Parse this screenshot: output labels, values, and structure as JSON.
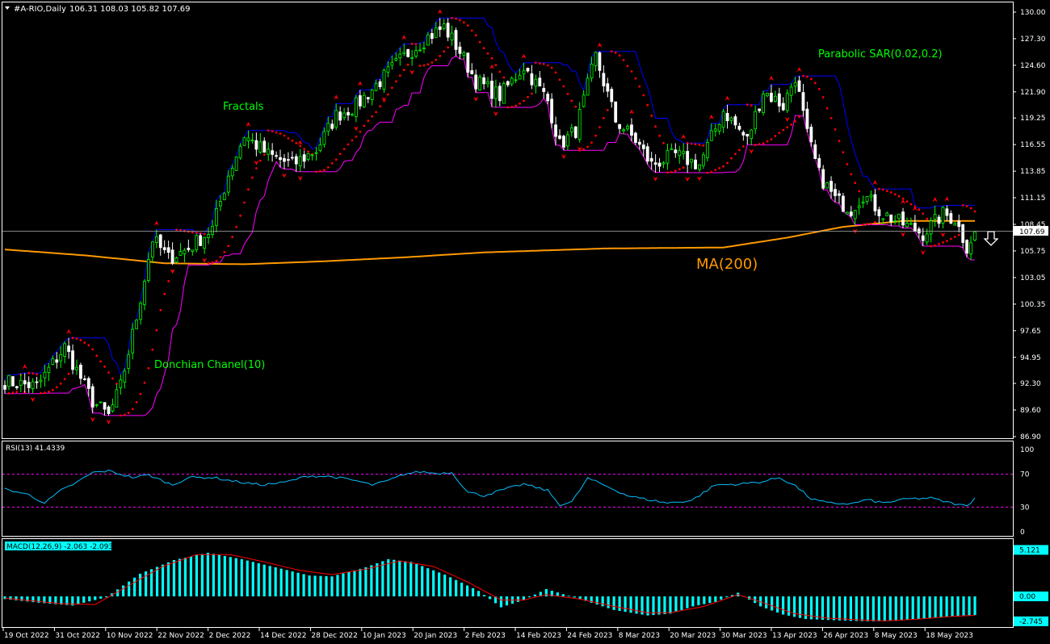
{
  "header": {
    "symbol_line": "#A-RIO,Daily",
    "ohlc": "106.31 108.03 105.82 107.69"
  },
  "colors": {
    "background": "#000000",
    "frame": "#ffffff",
    "bull_candle": "#00ff00",
    "bear_candle": "#ffffff",
    "donchian": "#0000ff",
    "donchian_low": "#ff00ff",
    "psar": "#ff0000",
    "ma200": "#ff9900",
    "annotation_text": "#00ff00",
    "ma_label": "#ff9900",
    "rsi_line": "#00bfff",
    "rsi_levels": "#ff00ff",
    "macd_hist": "#00ffff",
    "macd_signal": "#ff0000"
  },
  "annotations": {
    "fractals": "Fractals",
    "parabolic_sar": "Parabolic SAR(0.02,0.2)",
    "donchian": "Donchian Chanel(10)",
    "ma200": "MA(200)",
    "down_arrow_icon": "down-arrow-icon"
  },
  "chart_data": [
    {
      "type": "candlestick",
      "title": "#A-RIO,Daily",
      "ylim": [
        86.9,
        130.0
      ],
      "y_ticks": [
        "130.00",
        "127.30",
        "124.60",
        "121.90",
        "119.25",
        "116.55",
        "113.85",
        "111.15",
        "108.45",
        "105.75",
        "103.05",
        "100.35",
        "97.65",
        "94.95",
        "92.30",
        "89.60",
        "86.90"
      ],
      "current_price": "107.69",
      "x_ticks": [
        "19 Oct 2022",
        "31 Oct 2022",
        "10 Nov 2022",
        "22 Nov 2022",
        "2 Dec 2022",
        "14 Dec 2022",
        "28 Dec 2022",
        "10 Jan 2023",
        "20 Jan 2023",
        "2 Feb 2023",
        "14 Feb 2023",
        "24 Feb 2023",
        "8 Mar 2023",
        "20 Mar 2023",
        "30 Mar 2023",
        "13 Apr 2023",
        "26 Apr 2023",
        "8 May 2023",
        "18 May 2023"
      ],
      "close_path": [
        [
          0,
          92.5
        ],
        [
          8,
          92.0
        ],
        [
          15,
          96.0
        ],
        [
          22,
          90.5
        ],
        [
          26,
          89.0
        ],
        [
          29,
          92.0
        ],
        [
          33,
          99.0
        ],
        [
          37,
          107.0
        ],
        [
          41,
          105.0
        ],
        [
          46,
          106.0
        ],
        [
          52,
          108.0
        ],
        [
          56,
          113.5
        ],
        [
          60,
          117.5
        ],
        [
          66,
          115.5
        ],
        [
          72,
          114.5
        ],
        [
          78,
          116.0
        ],
        [
          83,
          119.5
        ],
        [
          88,
          120.5
        ],
        [
          94,
          123.0
        ],
        [
          100,
          125.5
        ],
        [
          106,
          127.5
        ],
        [
          110,
          128.5
        ],
        [
          114,
          126.0
        ],
        [
          118,
          123.0
        ],
        [
          124,
          121.5
        ],
        [
          130,
          124.5
        ],
        [
          136,
          121.0
        ],
        [
          139,
          116.5
        ],
        [
          143,
          118.0
        ],
        [
          148,
          125.5
        ],
        [
          153,
          119.0
        ],
        [
          158,
          117.0
        ],
        [
          162,
          114.5
        ],
        [
          168,
          115.5
        ],
        [
          174,
          114.5
        ],
        [
          180,
          120.0
        ],
        [
          186,
          117.0
        ],
        [
          190,
          122.0
        ],
        [
          195,
          120.5
        ],
        [
          198,
          123.5
        ],
        [
          201,
          117.5
        ],
        [
          204,
          113.5
        ],
        [
          208,
          111.0
        ],
        [
          212,
          110.0
        ],
        [
          215,
          111.5
        ],
        [
          220,
          109.5
        ],
        [
          225,
          108.5
        ],
        [
          230,
          107.5
        ],
        [
          235,
          109.5
        ],
        [
          238,
          109.0
        ],
        [
          241,
          106.2
        ],
        [
          243,
          107.69
        ]
      ],
      "series": [
        {
          "name": "Parabolic SAR(0.02,0.2)"
        },
        {
          "name": "Donchian Chanel(10)"
        },
        {
          "name": "MA(200)",
          "values": [
            [
              0,
              105.9
            ],
            [
              20,
              105.3
            ],
            [
              40,
              104.5
            ],
            [
              60,
              104.4
            ],
            [
              80,
              104.7
            ],
            [
              100,
              105.1
            ],
            [
              120,
              105.6
            ],
            [
              150,
              106.0
            ],
            [
              180,
              106.1
            ],
            [
              196,
              107.1
            ],
            [
              210,
              108.2
            ],
            [
              225,
              108.8
            ],
            [
              243,
              108.8
            ]
          ]
        }
      ]
    },
    {
      "type": "line",
      "title": "RSI(13) 41.4339",
      "ylim": [
        0,
        100
      ],
      "y_ticks": [
        "100",
        "70",
        "30",
        "0"
      ],
      "levels": [
        70,
        30
      ],
      "series": [
        {
          "name": "RSI(13)",
          "values": [
            [
              0,
              52
            ],
            [
              6,
              45
            ],
            [
              10,
              35
            ],
            [
              14,
              50
            ],
            [
              18,
              60
            ],
            [
              22,
              72
            ],
            [
              26,
              74
            ],
            [
              32,
              66
            ],
            [
              36,
              69
            ],
            [
              42,
              57
            ],
            [
              46,
              66
            ],
            [
              52,
              66
            ],
            [
              58,
              61
            ],
            [
              64,
              57
            ],
            [
              70,
              60
            ],
            [
              76,
              68
            ],
            [
              82,
              67
            ],
            [
              88,
              62
            ],
            [
              92,
              57
            ],
            [
              96,
              62
            ],
            [
              100,
              70
            ],
            [
              104,
              73
            ],
            [
              108,
              71
            ],
            [
              112,
              72
            ],
            [
              116,
              48
            ],
            [
              120,
              44
            ],
            [
              124,
              50
            ],
            [
              130,
              58
            ],
            [
              136,
              50
            ],
            [
              139,
              33
            ],
            [
              142,
              36
            ],
            [
              146,
              65
            ],
            [
              150,
              57
            ],
            [
              156,
              44
            ],
            [
              160,
              40
            ],
            [
              166,
              35
            ],
            [
              172,
              38
            ],
            [
              178,
              57
            ],
            [
              184,
              58
            ],
            [
              190,
              61
            ],
            [
              194,
              66
            ],
            [
              198,
              56
            ],
            [
              202,
              40
            ],
            [
              206,
              35
            ],
            [
              212,
              34
            ],
            [
              216,
              39
            ],
            [
              220,
              35
            ],
            [
              226,
              40
            ],
            [
              232,
              41
            ],
            [
              236,
              36
            ],
            [
              241,
              31
            ],
            [
              243,
              41.4
            ]
          ]
        }
      ]
    },
    {
      "type": "bar",
      "title": "MACD(12,26,9) -2.063 -2.093",
      "ylim": [
        -3.2,
        5.6
      ],
      "y_ticks": [
        "5.121",
        "0.00",
        "-2.745"
      ],
      "series": [
        {
          "name": "MACD",
          "values": [
            [
              0,
              -0.3
            ],
            [
              6,
              -0.7
            ],
            [
              12,
              -1.0
            ],
            [
              18,
              -0.1
            ],
            [
              24,
              2.5
            ],
            [
              30,
              4.0
            ],
            [
              36,
              4.8
            ],
            [
              42,
              4.1
            ],
            [
              48,
              3.2
            ],
            [
              54,
              2.3
            ],
            [
              58,
              2.2
            ],
            [
              64,
              3.2
            ],
            [
              68,
              4.1
            ],
            [
              72,
              3.8
            ],
            [
              78,
              2.4
            ],
            [
              84,
              0.6
            ],
            [
              88,
              -1.2
            ],
            [
              92,
              -0.4
            ],
            [
              96,
              0.8
            ],
            [
              102,
              -0.3
            ],
            [
              108,
              -1.5
            ],
            [
              114,
              -2.1
            ],
            [
              118,
              -1.9
            ],
            [
              122,
              -1.1
            ],
            [
              126,
              -0.6
            ],
            [
              130,
              0.4
            ],
            [
              134,
              -1.1
            ],
            [
              138,
              -2.0
            ],
            [
              142,
              -2.5
            ],
            [
              146,
              -2.6
            ],
            [
              150,
              -2.7
            ],
            [
              154,
              -2.745
            ],
            [
              158,
              -2.7
            ],
            [
              162,
              -2.5
            ],
            [
              166,
              -2.3
            ],
            [
              170,
              -2.1
            ],
            [
              172,
              -2.063
            ]
          ]
        },
        {
          "name": "Signal",
          "values": [
            [
              0,
              -0.2
            ],
            [
              10,
              -0.8
            ],
            [
              16,
              -0.9
            ],
            [
              20,
              0.5
            ],
            [
              28,
              3.3
            ],
            [
              34,
              4.6
            ],
            [
              40,
              4.6
            ],
            [
              46,
              3.8
            ],
            [
              52,
              2.9
            ],
            [
              58,
              2.4
            ],
            [
              64,
              3.0
            ],
            [
              70,
              3.9
            ],
            [
              76,
              3.3
            ],
            [
              82,
              1.6
            ],
            [
              88,
              -0.4
            ],
            [
              92,
              -0.4
            ],
            [
              96,
              0.2
            ],
            [
              102,
              -0.3
            ],
            [
              108,
              -1.1
            ],
            [
              114,
              -1.8
            ],
            [
              118,
              -1.8
            ],
            [
              124,
              -1.1
            ],
            [
              130,
              0.2
            ],
            [
              134,
              -0.6
            ],
            [
              140,
              -1.9
            ],
            [
              146,
              -2.4
            ],
            [
              152,
              -2.6
            ],
            [
              156,
              -2.7
            ],
            [
              162,
              -2.5
            ],
            [
              168,
              -2.2
            ],
            [
              172,
              -2.093
            ]
          ]
        }
      ]
    }
  ]
}
